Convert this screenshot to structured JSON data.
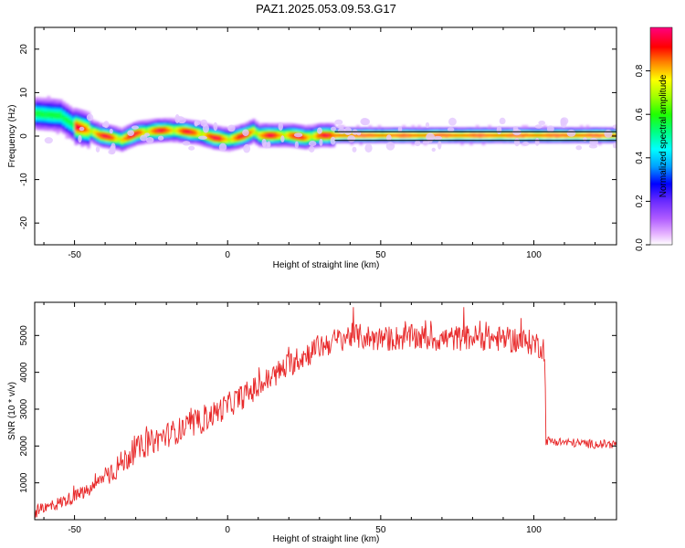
{
  "title": "PAZ1.2025.053.09.53.G17",
  "colors": {
    "snr_line": "#e8292a",
    "band_line": "#000000",
    "axis": "#000000"
  },
  "chart_data": [
    {
      "type": "heatmap",
      "xlabel": "Height of straight line (km)",
      "ylabel": "Frequency (Hz)",
      "xlim": [
        -63,
        127
      ],
      "ylim": [
        -25,
        25
      ],
      "xticks": [
        -50,
        0,
        50,
        100
      ],
      "yticks": [
        -20,
        -10,
        0,
        10,
        20
      ],
      "colormap": "hsv-like (magenta → blue → cyan → green → yellow → red → magenta)",
      "colorbar": {
        "label": "Normalized spectral amplitude",
        "ticks": [
          "0.0",
          "0.2",
          "0.4",
          "0.6",
          "0.8"
        ],
        "range": [
          0,
          1
        ]
      },
      "ridge_x": [
        -63,
        -55,
        -50,
        -45,
        -42,
        -38,
        -35,
        -30,
        -25,
        -20,
        -15,
        -10,
        -5,
        0,
        5,
        8,
        10,
        15,
        20,
        25,
        30,
        35,
        40,
        60,
        80,
        100,
        127
      ],
      "ridge_y": [
        5,
        4.5,
        2,
        1,
        0,
        -0.5,
        -1,
        0.5,
        1,
        1.2,
        1,
        0.5,
        -0.5,
        -1,
        0,
        1,
        0,
        0,
        0,
        -0.5,
        0,
        0,
        0,
        0,
        0,
        0,
        0
      ],
      "band_lines": [
        {
          "x_start": 35,
          "x_end": 127,
          "y": 1
        },
        {
          "x_start": 35,
          "x_end": 127,
          "y": -1
        }
      ]
    },
    {
      "type": "line",
      "xlabel": "Height of straight line (km)",
      "ylabel": "SNR (10 * v/v)",
      "xlim": [
        -63,
        127
      ],
      "ylim": [
        0,
        5900
      ],
      "xticks": [
        -50,
        0,
        50,
        100
      ],
      "yticks": [
        1000,
        2000,
        3000,
        4000,
        5000
      ],
      "grid": false,
      "trend_x": [
        -63,
        -55,
        -45,
        -40,
        -35,
        -30,
        -20,
        -10,
        0,
        10,
        20,
        30,
        40,
        50,
        60,
        70,
        80,
        90,
        100,
        103.5,
        104,
        110,
        120,
        127
      ],
      "trend_y": [
        200,
        450,
        800,
        1200,
        1500,
        1900,
        2300,
        2600,
        3100,
        3600,
        4200,
        4700,
        5000,
        4900,
        4950,
        4900,
        4950,
        4900,
        4800,
        4650,
        2150,
        2100,
        2050,
        2050
      ],
      "noise_amplitude": 350
    }
  ]
}
